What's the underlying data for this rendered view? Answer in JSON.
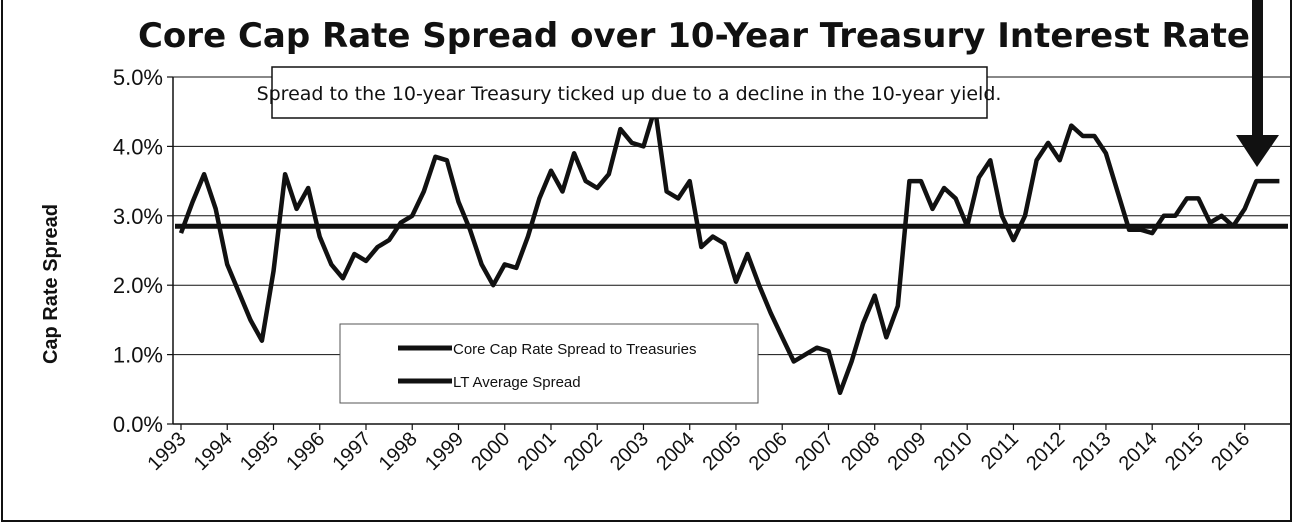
{
  "chart_data": {
    "type": "line",
    "title": "Core Cap Rate Spread over 10-Year Treasury Interest Rate",
    "annotation": "Spread to the 10-year Treasury ticked up due to a decline in the 10-year yield.",
    "ylabel": "Cap Rate Spread",
    "xlabel": "",
    "ylim": [
      0,
      5
    ],
    "y_ticks": [
      "0.0%",
      "1.0%",
      "2.0%",
      "3.0%",
      "4.0%",
      "5.0%"
    ],
    "x_ticks": [
      "1993",
      "1994",
      "1995",
      "1996",
      "1997",
      "1998",
      "1999",
      "2000",
      "2001",
      "2002",
      "2003",
      "2004",
      "2005",
      "2006",
      "2007",
      "2008",
      "2009",
      "2010",
      "2011",
      "2012",
      "2013",
      "2014",
      "2015",
      "2016"
    ],
    "grid": true,
    "legend_position": "bottom-center",
    "series": [
      {
        "name": "Core Cap Rate Spread to Treasuries",
        "color": "#111111",
        "x": [
          1993.0,
          1993.25,
          1993.5,
          1993.75,
          1994.0,
          1994.25,
          1994.5,
          1994.75,
          1995.0,
          1995.25,
          1995.5,
          1995.75,
          1996.0,
          1996.25,
          1996.5,
          1996.75,
          1997.0,
          1997.25,
          1997.5,
          1997.75,
          1998.0,
          1998.25,
          1998.5,
          1998.75,
          1999.0,
          1999.25,
          1999.5,
          1999.75,
          2000.0,
          2000.25,
          2000.5,
          2000.75,
          2001.0,
          2001.25,
          2001.5,
          2001.75,
          2002.0,
          2002.25,
          2002.5,
          2002.75,
          2003.0,
          2003.25,
          2003.5,
          2003.75,
          2004.0,
          2004.25,
          2004.5,
          2004.75,
          2005.0,
          2005.25,
          2005.5,
          2005.75,
          2006.0,
          2006.25,
          2006.5,
          2006.75,
          2007.0,
          2007.25,
          2007.5,
          2007.75,
          2008.0,
          2008.25,
          2008.5,
          2008.75,
          2009.0,
          2009.25,
          2009.5,
          2009.75,
          2010.0,
          2010.25,
          2010.5,
          2010.75,
          2011.0,
          2011.25,
          2011.5,
          2011.75,
          2012.0,
          2012.25,
          2012.5,
          2012.75,
          2013.0,
          2013.25,
          2013.5,
          2013.75,
          2014.0,
          2014.25,
          2014.5,
          2014.75,
          2015.0,
          2015.25,
          2015.5,
          2015.75,
          2016.0,
          2016.25,
          2016.5,
          2016.75
        ],
        "values": [
          2.75,
          3.2,
          3.6,
          3.1,
          2.3,
          1.9,
          1.5,
          1.2,
          2.2,
          3.6,
          3.1,
          3.4,
          2.7,
          2.3,
          2.1,
          2.45,
          2.35,
          2.55,
          2.65,
          2.9,
          3.0,
          3.35,
          3.85,
          3.8,
          3.2,
          2.8,
          2.3,
          2.0,
          2.3,
          2.25,
          2.7,
          3.25,
          3.65,
          3.35,
          3.9,
          3.5,
          3.4,
          3.6,
          4.25,
          4.05,
          4.0,
          4.55,
          3.35,
          3.25,
          3.5,
          2.55,
          2.7,
          2.6,
          2.05,
          2.45,
          2.0,
          1.6,
          1.25,
          0.9,
          1.0,
          1.1,
          1.05,
          0.45,
          0.9,
          1.45,
          1.85,
          1.25,
          1.7,
          3.5,
          3.5,
          3.1,
          3.4,
          3.25,
          2.85,
          3.55,
          3.8,
          3.0,
          2.65,
          3.0,
          3.8,
          4.05,
          3.8,
          4.3,
          4.15,
          4.15,
          3.9,
          3.35,
          2.8,
          2.8,
          2.75,
          3.0,
          3.0,
          3.25,
          3.25,
          2.9,
          3.0,
          2.85,
          3.1,
          3.5,
          3.5,
          3.5
        ]
      },
      {
        "name": "LT Average Spread",
        "color": "#111111",
        "x": [
          1993.0,
          2016.75
        ],
        "values": [
          2.85,
          2.85
        ]
      }
    ]
  }
}
